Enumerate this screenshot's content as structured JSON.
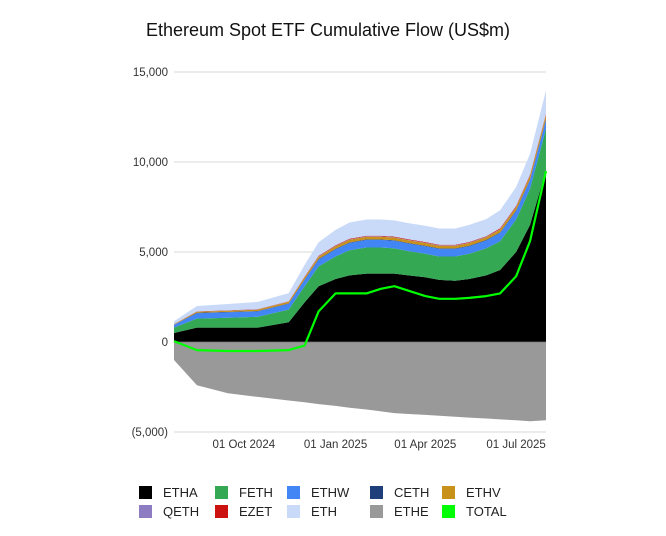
{
  "chart_data": {
    "type": "area",
    "title": "Ethereum Spot ETF Cumulative Flow (US$m)",
    "xlabel": "",
    "ylabel": "",
    "x_range": [
      "2024-07-23",
      "2025-07-31"
    ],
    "ylim": [
      -5000,
      15000
    ],
    "y_ticks": [
      {
        "value": 15000,
        "label": "15,000"
      },
      {
        "value": 10000,
        "label": "10,000"
      },
      {
        "value": 5000,
        "label": "5,000"
      },
      {
        "value": 0,
        "label": "0"
      },
      {
        "value": -5000,
        "label": "(5,000)"
      }
    ],
    "x_ticks": [
      {
        "date": "2024-10-01",
        "label": "01 Oct 2024"
      },
      {
        "date": "2025-01-01",
        "label": "01 Jan 2025"
      },
      {
        "date": "2025-04-01",
        "label": "01 Apr 2025"
      },
      {
        "date": "2025-07-01",
        "label": "01 Jul 2025"
      }
    ],
    "grid": true,
    "legend_position": "bottom",
    "x": [
      "2024-07-23",
      "2024-08-15",
      "2024-09-15",
      "2024-10-15",
      "2024-11-15",
      "2024-12-01",
      "2024-12-15",
      "2025-01-01",
      "2025-01-15",
      "2025-02-01",
      "2025-02-15",
      "2025-03-01",
      "2025-03-15",
      "2025-04-01",
      "2025-04-15",
      "2025-05-01",
      "2025-05-15",
      "2025-06-01",
      "2025-06-15",
      "2025-07-01",
      "2025-07-15",
      "2025-07-31"
    ],
    "series": [
      {
        "name": "ETHA",
        "color": "#000000",
        "values": [
          500,
          800,
          800,
          800,
          1100,
          2200,
          3100,
          3500,
          3700,
          3800,
          3800,
          3800,
          3700,
          3600,
          3450,
          3400,
          3500,
          3700,
          4000,
          5000,
          6500,
          9550
        ]
      },
      {
        "name": "FETH",
        "color": "#34a853",
        "values": [
          300,
          500,
          550,
          600,
          700,
          900,
          1100,
          1250,
          1400,
          1450,
          1450,
          1400,
          1350,
          1300,
          1300,
          1350,
          1400,
          1500,
          1600,
          1800,
          2000,
          2300
        ]
      },
      {
        "name": "ETHW",
        "color": "#4285f4",
        "values": [
          150,
          300,
          300,
          300,
          320,
          350,
          380,
          400,
          400,
          420,
          420,
          420,
          420,
          420,
          420,
          420,
          420,
          440,
          460,
          480,
          500,
          500
        ]
      },
      {
        "name": "CETH",
        "color": "#1e3f7a",
        "values": [
          10,
          20,
          20,
          20,
          25,
          30,
          30,
          30,
          30,
          30,
          30,
          30,
          30,
          30,
          30,
          30,
          30,
          30,
          30,
          30,
          35,
          40
        ]
      },
      {
        "name": "ETHV",
        "color": "#c8911a",
        "values": [
          30,
          60,
          70,
          80,
          90,
          110,
          130,
          140,
          150,
          150,
          150,
          150,
          150,
          150,
          150,
          150,
          150,
          150,
          160,
          180,
          190,
          200
        ]
      },
      {
        "name": "QETH",
        "color": "#8e7cc3",
        "values": [
          5,
          10,
          10,
          12,
          15,
          18,
          20,
          20,
          22,
          22,
          22,
          22,
          22,
          22,
          22,
          22,
          22,
          22,
          24,
          25,
          27,
          30
        ]
      },
      {
        "name": "EZET",
        "color": "#cc1111",
        "values": [
          5,
          10,
          12,
          15,
          18,
          25,
          30,
          35,
          35,
          35,
          35,
          35,
          35,
          35,
          35,
          35,
          35,
          35,
          40,
          45,
          50,
          60
        ]
      },
      {
        "name": "ETH",
        "color": "#c9daf8",
        "values": [
          150,
          300,
          350,
          400,
          450,
          650,
          750,
          850,
          900,
          900,
          900,
          900,
          900,
          900,
          900,
          900,
          950,
          950,
          1000,
          1050,
          1150,
          1300
        ]
      },
      {
        "name": "ETHE",
        "color": "#999999",
        "values": [
          -1000,
          -2400,
          -2850,
          -3050,
          -3250,
          -3350,
          -3450,
          -3550,
          -3650,
          -3750,
          -3850,
          -3950,
          -4000,
          -4050,
          -4100,
          -4150,
          -4200,
          -4250,
          -4300,
          -4350,
          -4400,
          -4350
        ]
      },
      {
        "name": "TOTAL",
        "color": "#00ff00",
        "values": [
          50,
          -450,
          -500,
          -500,
          -450,
          -200,
          1700,
          2700,
          2700,
          2700,
          2950,
          3100,
          2850,
          2550,
          2400,
          2400,
          2450,
          2550,
          2700,
          3650,
          5600,
          9500
        ]
      }
    ]
  }
}
